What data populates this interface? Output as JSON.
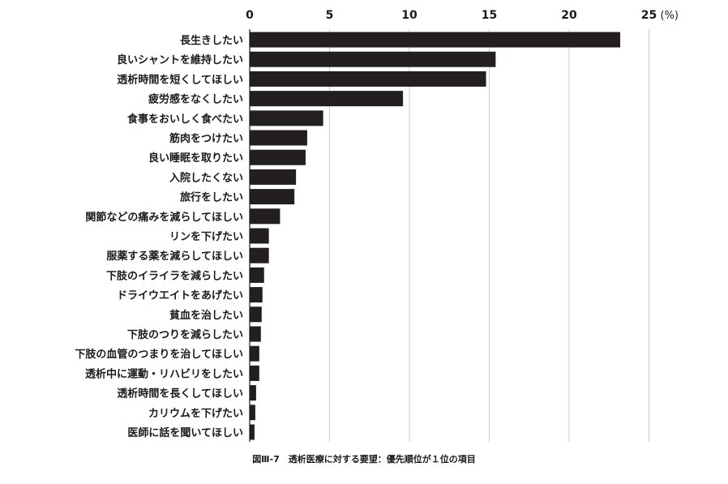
{
  "chart_data": {
    "type": "bar",
    "orientation": "horizontal",
    "categories": [
      "長生きしたい",
      "良いシャントを維持したい",
      "透析時間を短くしてほしい",
      "疲労感をなくしたい",
      "食事をおいしく食べたい",
      "筋肉をつけたい",
      "良い睡眠を取りたい",
      "入院したくない",
      "旅行をしたい",
      "関節などの痛みを減らしてほしい",
      "リンを下げたい",
      "服薬する薬を減らしてほしい",
      "下肢のイライラを減らしたい",
      "ドライウエイトをあげたい",
      "貧血を治したい",
      "下肢のつりを減らしたい",
      "下肢の血管のつまりを治してほしい",
      "透析中に運動・リハビリをしたい",
      "透析時間を長くしてほしい",
      "カリウムを下げたい",
      "医師に話を聞いてほしい"
    ],
    "values": [
      23.2,
      15.4,
      14.8,
      9.6,
      4.6,
      3.6,
      3.5,
      2.9,
      2.8,
      1.9,
      1.2,
      1.2,
      0.9,
      0.8,
      0.75,
      0.7,
      0.6,
      0.6,
      0.4,
      0.35,
      0.3
    ],
    "xlim": [
      0,
      25
    ],
    "xticks": [
      0,
      5,
      10,
      15,
      20,
      25
    ],
    "xunit": "(%)",
    "grid": true,
    "bar_color": "#231f20",
    "caption": "図Ⅲ-7　透析医療に対する要望：優先順位が１位の項目"
  }
}
